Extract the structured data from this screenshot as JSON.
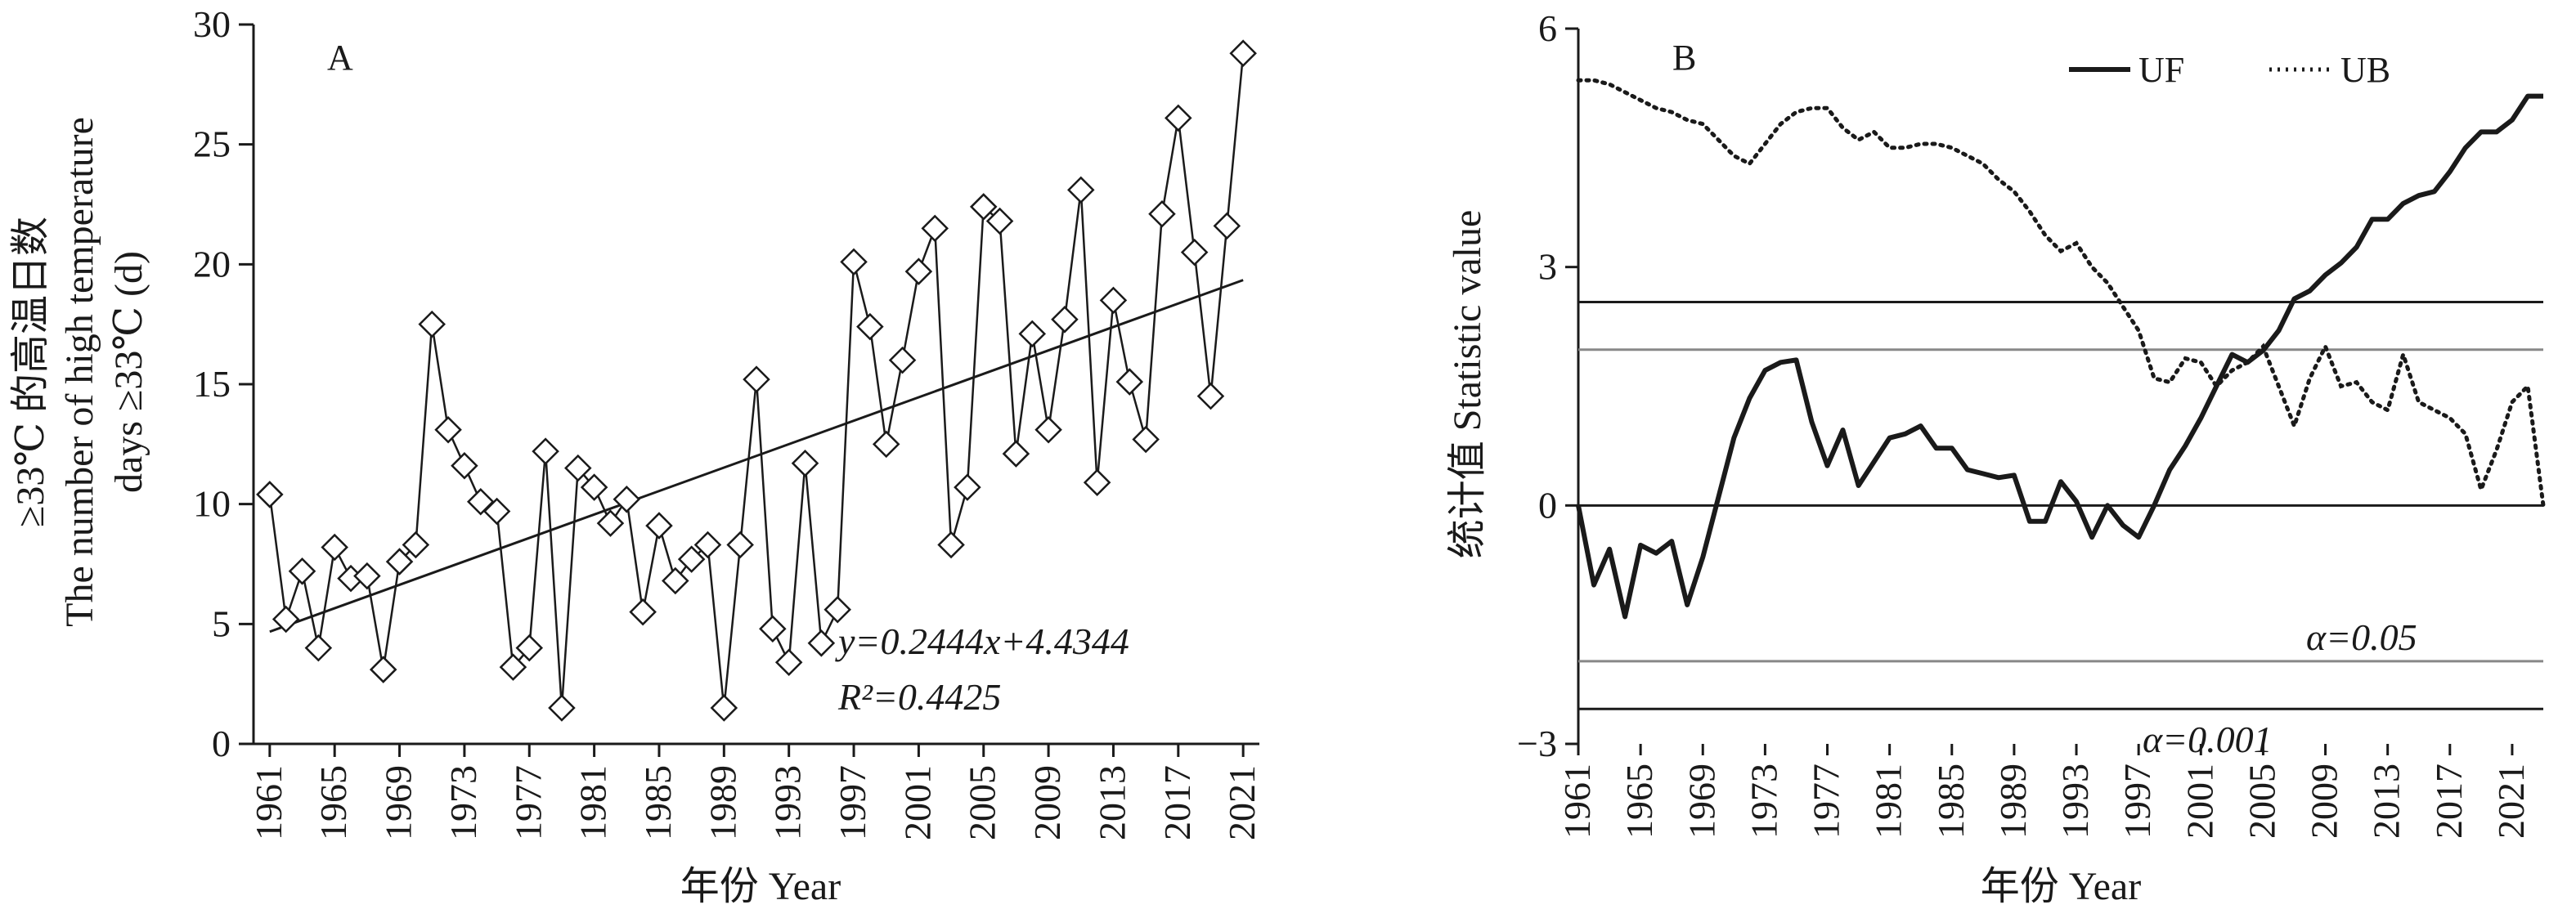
{
  "chart_data": [
    {
      "panel_label": "A",
      "type": "line",
      "ylabel_lines": [
        "≥33℃ 的高温日数",
        "The number of high temperature",
        "days ≥33℃ (d)"
      ],
      "xlabel": "年份 Year",
      "ylim": [
        0,
        30
      ],
      "yticks": [
        0,
        5,
        10,
        15,
        20,
        25,
        30
      ],
      "xlim": [
        1961,
        2021
      ],
      "xticks": [
        1961,
        1965,
        1969,
        1973,
        1977,
        1981,
        1985,
        1989,
        1993,
        1997,
        2001,
        2005,
        2009,
        2013,
        2017,
        2021
      ],
      "grid": false,
      "series": [
        {
          "marker": "diamond",
          "x": [
            1961,
            1962,
            1963,
            1964,
            1965,
            1966,
            1967,
            1968,
            1969,
            1970,
            1971,
            1972,
            1973,
            1974,
            1975,
            1976,
            1977,
            1978,
            1979,
            1980,
            1981,
            1982,
            1983,
            1984,
            1985,
            1986,
            1987,
            1988,
            1989,
            1990,
            1991,
            1992,
            1993,
            1994,
            1995,
            1996,
            1997,
            1998,
            1999,
            2000,
            2001,
            2002,
            2003,
            2004,
            2005,
            2006,
            2007,
            2008,
            2009,
            2010,
            2011,
            2012,
            2013,
            2014,
            2015,
            2016,
            2017,
            2018,
            2019,
            2020,
            2021
          ],
          "values": [
            10.4,
            5.2,
            7.2,
            4.0,
            8.2,
            6.9,
            7.0,
            3.1,
            7.6,
            8.3,
            17.5,
            13.1,
            11.6,
            10.1,
            9.7,
            3.2,
            4.0,
            12.2,
            1.5,
            11.5,
            10.7,
            9.2,
            10.2,
            5.5,
            9.1,
            6.8,
            7.7,
            8.3,
            1.5,
            8.3,
            15.2,
            4.8,
            3.4,
            11.7,
            4.2,
            5.6,
            20.1,
            17.4,
            12.5,
            16.0,
            19.7,
            21.5,
            8.3,
            10.7,
            22.4,
            21.8,
            12.1,
            17.1,
            13.1,
            17.7,
            23.1,
            10.9,
            18.5,
            15.1,
            12.7,
            22.1,
            26.1,
            20.5,
            14.5,
            21.6,
            28.8
          ]
        }
      ],
      "trendline": {
        "slope": 0.2444,
        "intercept": 4.4344
      },
      "annotations": [
        "y=0.2444x+4.4344",
        "R²=0.4425"
      ]
    },
    {
      "panel_label": "B",
      "type": "line",
      "ylabel": "统计值 Statistic value",
      "xlabel": "年份 Year",
      "ylim": [
        -3,
        6
      ],
      "yticks": [
        -3,
        0,
        3,
        6
      ],
      "ytick_labels": [
        "−3",
        "0",
        "3",
        "6"
      ],
      "xlim": [
        1961,
        2023
      ],
      "xticks": [
        1961,
        1965,
        1969,
        1973,
        1977,
        1981,
        1985,
        1989,
        1993,
        1997,
        2001,
        2005,
        2009,
        2013,
        2017,
        2021
      ],
      "grid": false,
      "legend_position": "top-right",
      "series": [
        {
          "name": "UF",
          "style": "solid",
          "x": [
            1961,
            1962,
            1963,
            1964,
            1965,
            1966,
            1967,
            1968,
            1969,
            1970,
            1971,
            1972,
            1973,
            1974,
            1975,
            1976,
            1977,
            1978,
            1979,
            1980,
            1981,
            1982,
            1983,
            1984,
            1985,
            1986,
            1987,
            1988,
            1989,
            1990,
            1991,
            1992,
            1993,
            1994,
            1995,
            1996,
            1997,
            1998,
            1999,
            2000,
            2001,
            2002,
            2003,
            2004,
            2005,
            2006,
            2007,
            2008,
            2009,
            2010,
            2011,
            2012,
            2013,
            2014,
            2015,
            2016,
            2017,
            2018,
            2019,
            2020,
            2021,
            2022,
            2023
          ],
          "values": [
            0.0,
            -1.0,
            -0.55,
            -1.4,
            -0.5,
            -0.6,
            -0.45,
            -1.25,
            -0.65,
            0.1,
            0.85,
            1.35,
            1.7,
            1.8,
            1.83,
            1.05,
            0.5,
            0.95,
            0.25,
            0.55,
            0.85,
            0.9,
            1.0,
            0.72,
            0.72,
            0.45,
            0.4,
            0.35,
            0.38,
            -0.2,
            -0.2,
            0.3,
            0.05,
            -0.4,
            0.0,
            -0.25,
            -0.4,
            0.0,
            0.45,
            0.75,
            1.1,
            1.5,
            1.9,
            1.8,
            1.95,
            2.2,
            2.6,
            2.7,
            2.9,
            3.05,
            3.25,
            3.6,
            3.6,
            3.8,
            3.9,
            3.95,
            4.2,
            4.5,
            4.7,
            4.7,
            4.85,
            5.15,
            5.15
          ]
        },
        {
          "name": "UB",
          "style": "dotted",
          "x": [
            1961,
            1962,
            1963,
            1964,
            1965,
            1966,
            1967,
            1968,
            1969,
            1970,
            1971,
            1972,
            1973,
            1974,
            1975,
            1976,
            1977,
            1978,
            1979,
            1980,
            1981,
            1982,
            1983,
            1984,
            1985,
            1986,
            1987,
            1988,
            1989,
            1990,
            1991,
            1992,
            1993,
            1994,
            1995,
            1996,
            1997,
            1998,
            1999,
            2000,
            2001,
            2002,
            2003,
            2004,
            2005,
            2006,
            2007,
            2008,
            2009,
            2010,
            2011,
            2012,
            2013,
            2014,
            2015,
            2016,
            2017,
            2018,
            2019,
            2020,
            2021,
            2022,
            2023
          ],
          "values": [
            5.35,
            5.35,
            5.3,
            5.2,
            5.1,
            5.0,
            4.95,
            4.85,
            4.8,
            4.6,
            4.4,
            4.3,
            4.55,
            4.8,
            4.95,
            5.0,
            5.0,
            4.75,
            4.6,
            4.7,
            4.5,
            4.5,
            4.55,
            4.55,
            4.5,
            4.4,
            4.3,
            4.1,
            3.95,
            3.7,
            3.4,
            3.2,
            3.3,
            3.0,
            2.8,
            2.5,
            2.2,
            1.6,
            1.55,
            1.85,
            1.8,
            1.5,
            1.7,
            1.8,
            2.0,
            1.5,
            1.0,
            1.6,
            2.0,
            1.5,
            1.55,
            1.3,
            1.2,
            1.9,
            1.3,
            1.2,
            1.1,
            0.9,
            0.2,
            0.7,
            1.3,
            1.5,
            0.0
          ]
        }
      ],
      "reference_lines": [
        {
          "value": 2.56,
          "color": "#1a1a1a"
        },
        {
          "value": 1.96,
          "color": "#888888"
        },
        {
          "value": -1.96,
          "color": "#888888"
        },
        {
          "value": -2.56,
          "color": "#1a1a1a"
        }
      ],
      "annotations": [
        "α=0.05",
        "α=0.001"
      ]
    }
  ]
}
